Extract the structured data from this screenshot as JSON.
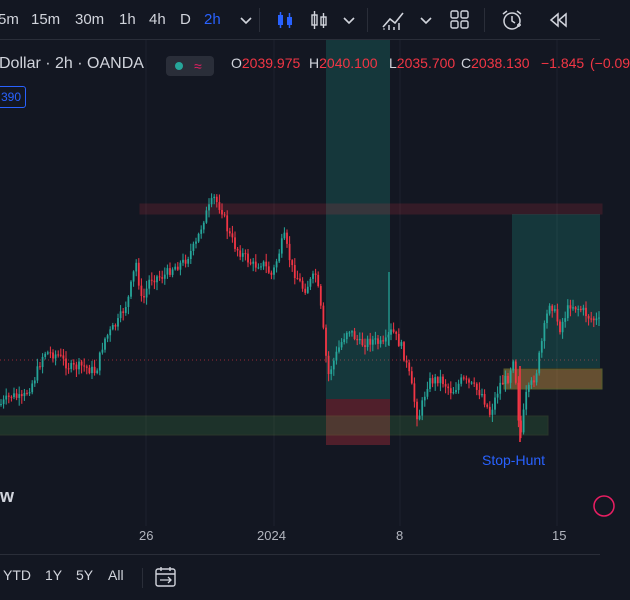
{
  "toolbar": {
    "timeframes": [
      "5m",
      "15m",
      "30m",
      "1h",
      "4h",
      "D",
      "2h"
    ],
    "active_timeframe": "2h",
    "icons": [
      "chevron-down-icon",
      "bar-style-icon",
      "candle-style-icon",
      "chevron-down-icon",
      "indicators-icon",
      "chevron-down-icon",
      "layout-grid-icon",
      "alert-clock-icon",
      "replay-icon"
    ]
  },
  "symbol": {
    "title": "Dollar · 2h · OANDA",
    "status_color": "#26a69a"
  },
  "ohlc": {
    "o_label": "O",
    "o_value": "2039.975",
    "h_label": "H",
    "h_value": "2040.100",
    "l_label": "L",
    "l_value": "2035.700",
    "c_label": "C",
    "c_value": "2038.130",
    "change": "−1.845",
    "change_pct": "(−0.09",
    "color_down": "#f23645",
    "color_up": "#26a69a"
  },
  "badge": "390",
  "chart_data": {
    "type": "candlestick",
    "x_ticks": [
      "26",
      "2024",
      "8",
      "15"
    ],
    "annotations": [
      "Stop-Hunt"
    ],
    "watermark": "w"
  },
  "bottom": {
    "ranges": [
      "YTD",
      "1Y",
      "5Y",
      "All"
    ],
    "date_range_icon": "calendar-range-icon"
  }
}
